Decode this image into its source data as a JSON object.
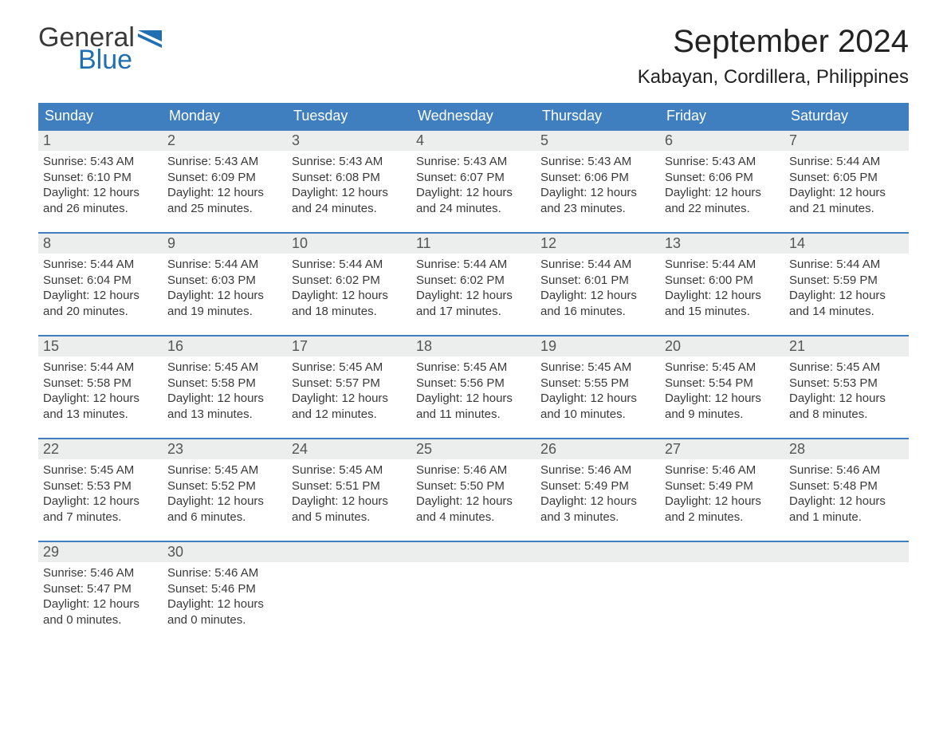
{
  "logo": {
    "word1": "General",
    "word2": "Blue",
    "flag_color": "#1f6fb2"
  },
  "title": "September 2024",
  "location": "Kabayan, Cordillera, Philippines",
  "colors": {
    "header_bg": "#3f7fbf",
    "header_text": "#ffffff",
    "daynum_bg": "#eceded",
    "rule": "#3f7fbf",
    "body_bg": "#ffffff",
    "text": "#3a3a3a",
    "logo_blue": "#1f6fb2"
  },
  "day_labels": [
    "Sunday",
    "Monday",
    "Tuesday",
    "Wednesday",
    "Thursday",
    "Friday",
    "Saturday"
  ],
  "weeks": [
    [
      {
        "n": "1",
        "sunrise": "5:43 AM",
        "sunset": "6:10 PM",
        "dl1": "12 hours",
        "dl2": "and 26 minutes."
      },
      {
        "n": "2",
        "sunrise": "5:43 AM",
        "sunset": "6:09 PM",
        "dl1": "12 hours",
        "dl2": "and 25 minutes."
      },
      {
        "n": "3",
        "sunrise": "5:43 AM",
        "sunset": "6:08 PM",
        "dl1": "12 hours",
        "dl2": "and 24 minutes."
      },
      {
        "n": "4",
        "sunrise": "5:43 AM",
        "sunset": "6:07 PM",
        "dl1": "12 hours",
        "dl2": "and 24 minutes."
      },
      {
        "n": "5",
        "sunrise": "5:43 AM",
        "sunset": "6:06 PM",
        "dl1": "12 hours",
        "dl2": "and 23 minutes."
      },
      {
        "n": "6",
        "sunrise": "5:43 AM",
        "sunset": "6:06 PM",
        "dl1": "12 hours",
        "dl2": "and 22 minutes."
      },
      {
        "n": "7",
        "sunrise": "5:44 AM",
        "sunset": "6:05 PM",
        "dl1": "12 hours",
        "dl2": "and 21 minutes."
      }
    ],
    [
      {
        "n": "8",
        "sunrise": "5:44 AM",
        "sunset": "6:04 PM",
        "dl1": "12 hours",
        "dl2": "and 20 minutes."
      },
      {
        "n": "9",
        "sunrise": "5:44 AM",
        "sunset": "6:03 PM",
        "dl1": "12 hours",
        "dl2": "and 19 minutes."
      },
      {
        "n": "10",
        "sunrise": "5:44 AM",
        "sunset": "6:02 PM",
        "dl1": "12 hours",
        "dl2": "and 18 minutes."
      },
      {
        "n": "11",
        "sunrise": "5:44 AM",
        "sunset": "6:02 PM",
        "dl1": "12 hours",
        "dl2": "and 17 minutes."
      },
      {
        "n": "12",
        "sunrise": "5:44 AM",
        "sunset": "6:01 PM",
        "dl1": "12 hours",
        "dl2": "and 16 minutes."
      },
      {
        "n": "13",
        "sunrise": "5:44 AM",
        "sunset": "6:00 PM",
        "dl1": "12 hours",
        "dl2": "and 15 minutes."
      },
      {
        "n": "14",
        "sunrise": "5:44 AM",
        "sunset": "5:59 PM",
        "dl1": "12 hours",
        "dl2": "and 14 minutes."
      }
    ],
    [
      {
        "n": "15",
        "sunrise": "5:44 AM",
        "sunset": "5:58 PM",
        "dl1": "12 hours",
        "dl2": "and 13 minutes."
      },
      {
        "n": "16",
        "sunrise": "5:45 AM",
        "sunset": "5:58 PM",
        "dl1": "12 hours",
        "dl2": "and 13 minutes."
      },
      {
        "n": "17",
        "sunrise": "5:45 AM",
        "sunset": "5:57 PM",
        "dl1": "12 hours",
        "dl2": "and 12 minutes."
      },
      {
        "n": "18",
        "sunrise": "5:45 AM",
        "sunset": "5:56 PM",
        "dl1": "12 hours",
        "dl2": "and 11 minutes."
      },
      {
        "n": "19",
        "sunrise": "5:45 AM",
        "sunset": "5:55 PM",
        "dl1": "12 hours",
        "dl2": "and 10 minutes."
      },
      {
        "n": "20",
        "sunrise": "5:45 AM",
        "sunset": "5:54 PM",
        "dl1": "12 hours",
        "dl2": "and 9 minutes."
      },
      {
        "n": "21",
        "sunrise": "5:45 AM",
        "sunset": "5:53 PM",
        "dl1": "12 hours",
        "dl2": "and 8 minutes."
      }
    ],
    [
      {
        "n": "22",
        "sunrise": "5:45 AM",
        "sunset": "5:53 PM",
        "dl1": "12 hours",
        "dl2": "and 7 minutes."
      },
      {
        "n": "23",
        "sunrise": "5:45 AM",
        "sunset": "5:52 PM",
        "dl1": "12 hours",
        "dl2": "and 6 minutes."
      },
      {
        "n": "24",
        "sunrise": "5:45 AM",
        "sunset": "5:51 PM",
        "dl1": "12 hours",
        "dl2": "and 5 minutes."
      },
      {
        "n": "25",
        "sunrise": "5:46 AM",
        "sunset": "5:50 PM",
        "dl1": "12 hours",
        "dl2": "and 4 minutes."
      },
      {
        "n": "26",
        "sunrise": "5:46 AM",
        "sunset": "5:49 PM",
        "dl1": "12 hours",
        "dl2": "and 3 minutes."
      },
      {
        "n": "27",
        "sunrise": "5:46 AM",
        "sunset": "5:49 PM",
        "dl1": "12 hours",
        "dl2": "and 2 minutes."
      },
      {
        "n": "28",
        "sunrise": "5:46 AM",
        "sunset": "5:48 PM",
        "dl1": "12 hours",
        "dl2": "and 1 minute."
      }
    ],
    [
      {
        "n": "29",
        "sunrise": "5:46 AM",
        "sunset": "5:47 PM",
        "dl1": "12 hours",
        "dl2": "and 0 minutes."
      },
      {
        "n": "30",
        "sunrise": "5:46 AM",
        "sunset": "5:46 PM",
        "dl1": "12 hours",
        "dl2": "and 0 minutes."
      },
      {
        "n": "",
        "sunrise": "",
        "sunset": "",
        "dl1": "",
        "dl2": ""
      },
      {
        "n": "",
        "sunrise": "",
        "sunset": "",
        "dl1": "",
        "dl2": ""
      },
      {
        "n": "",
        "sunrise": "",
        "sunset": "",
        "dl1": "",
        "dl2": ""
      },
      {
        "n": "",
        "sunrise": "",
        "sunset": "",
        "dl1": "",
        "dl2": ""
      },
      {
        "n": "",
        "sunrise": "",
        "sunset": "",
        "dl1": "",
        "dl2": ""
      }
    ]
  ],
  "labels": {
    "sunrise": "Sunrise: ",
    "sunset": "Sunset: ",
    "daylight": "Daylight: "
  }
}
